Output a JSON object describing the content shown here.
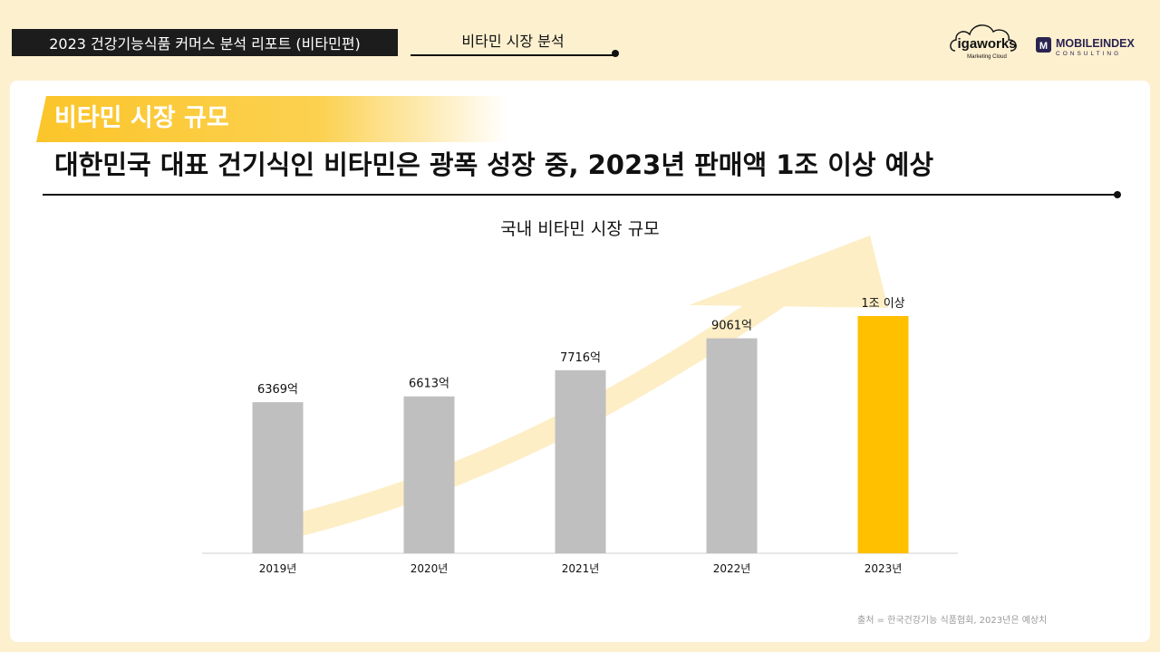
{
  "header": {
    "report_tag": "2023 건강기능식품 커머스 분석 리포트 (비타민편)",
    "section_tab": "비타민 시장 분석"
  },
  "logos": {
    "igaworks_name": "igaworks",
    "igaworks_sub": "Marketing Cloud",
    "mobileindex_name": "MOBILEINDEX",
    "mobileindex_sub": "CONSULTING"
  },
  "section": {
    "title": "비타민 시장 규모",
    "headline": "대한민국 대표 건기식인 비타민은 광폭 성장 중, 2023년 판매액 1조 이상 예상"
  },
  "colors": {
    "accent": "#fbc52a",
    "highlight_bar": "#ffc000",
    "bar": "#bfbfbf",
    "arrow": "#fdeec6"
  },
  "chart_data": {
    "type": "bar",
    "title": "국내 비타민 시장 규모",
    "categories": [
      "2019년",
      "2020년",
      "2021년",
      "2022년",
      "2023년"
    ],
    "values": [
      6369,
      6613,
      7716,
      9061,
      10000
    ],
    "value_labels": [
      "6369억",
      "6613억",
      "7716억",
      "9061억",
      "1조 이상"
    ],
    "unit": "억 원",
    "highlight_index": 4,
    "trend_arrow": true,
    "xlabel": "",
    "ylabel": "",
    "axes_visible": false
  },
  "footer": {
    "source": "출처 = 한국건강기능 식품협회, 2023년은 예상치"
  }
}
